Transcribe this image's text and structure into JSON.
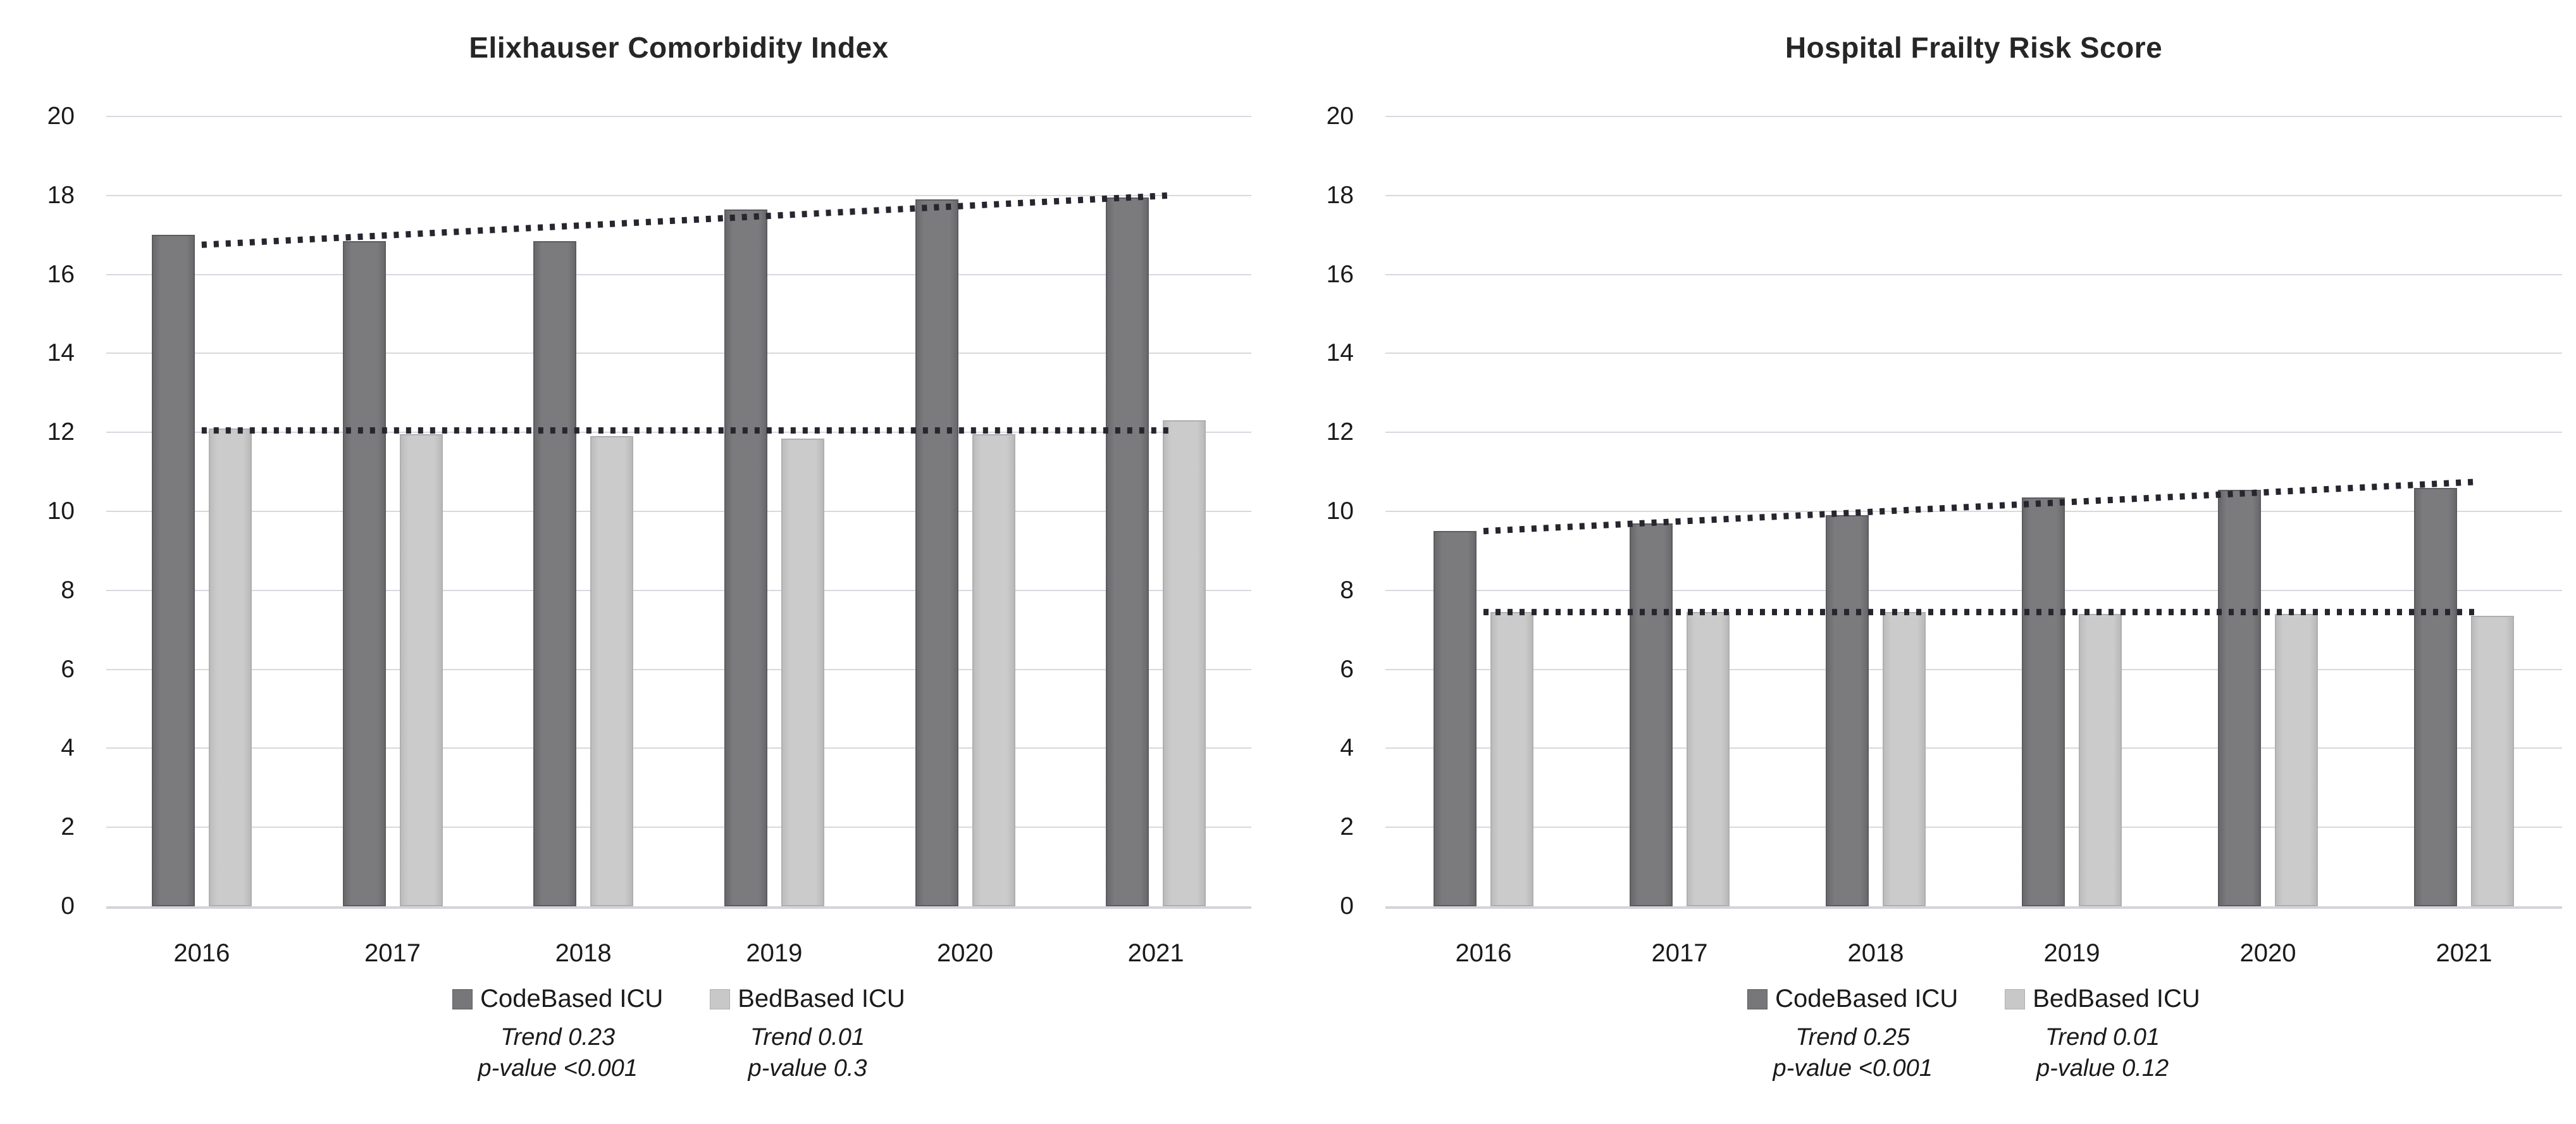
{
  "colors": {
    "dark_bar": "#77777a",
    "dark_bar_border": "#5c5c60",
    "light_bar": "#c9c8c8",
    "light_bar_border": "#b0afaf",
    "gridline": "#d8d8de",
    "axis_baseline": "#d3d3da",
    "trend_line": "#26262e",
    "text": "#1a1a1a"
  },
  "chart_data": [
    {
      "type": "bar",
      "title": "Elixhauser Comorbidity Index",
      "categories": [
        "2016",
        "2017",
        "2018",
        "2019",
        "2020",
        "2021"
      ],
      "series": [
        {
          "name": "CodeBased ICU",
          "color_key": "dark",
          "values": [
            17.0,
            16.85,
            16.85,
            17.65,
            17.9,
            17.95
          ],
          "trend": {
            "label": "Trend 0.23",
            "p": "p-value <0.001",
            "start": 16.75,
            "end": 18.0
          }
        },
        {
          "name": "BedBased ICU",
          "color_key": "light",
          "values": [
            12.1,
            11.95,
            11.9,
            11.85,
            11.95,
            12.3
          ],
          "trend": {
            "label": "Trend 0.01",
            "p": "p-value 0.3",
            "start": 12.05,
            "end": 12.05
          }
        }
      ],
      "ylim": [
        0,
        20
      ],
      "ytick_step": 2,
      "grid": true,
      "legend_position": "bottom"
    },
    {
      "type": "bar",
      "title": "Hospital Frailty Risk Score",
      "categories": [
        "2016",
        "2017",
        "2018",
        "2019",
        "2020",
        "2021"
      ],
      "series": [
        {
          "name": "CodeBased ICU",
          "color_key": "dark",
          "values": [
            9.5,
            9.7,
            9.9,
            10.35,
            10.55,
            10.6
          ],
          "trend": {
            "label": "Trend 0.25",
            "p": "p-value <0.001",
            "start": 9.5,
            "end": 10.75
          }
        },
        {
          "name": "BedBased ICU",
          "color_key": "light",
          "values": [
            7.45,
            7.45,
            7.45,
            7.4,
            7.4,
            7.35
          ],
          "trend": {
            "label": "Trend 0.01",
            "p": "p-value 0.12",
            "start": 7.45,
            "end": 7.45
          }
        }
      ],
      "ylim": [
        0,
        20
      ],
      "ytick_step": 2,
      "grid": true,
      "legend_position": "bottom"
    }
  ]
}
